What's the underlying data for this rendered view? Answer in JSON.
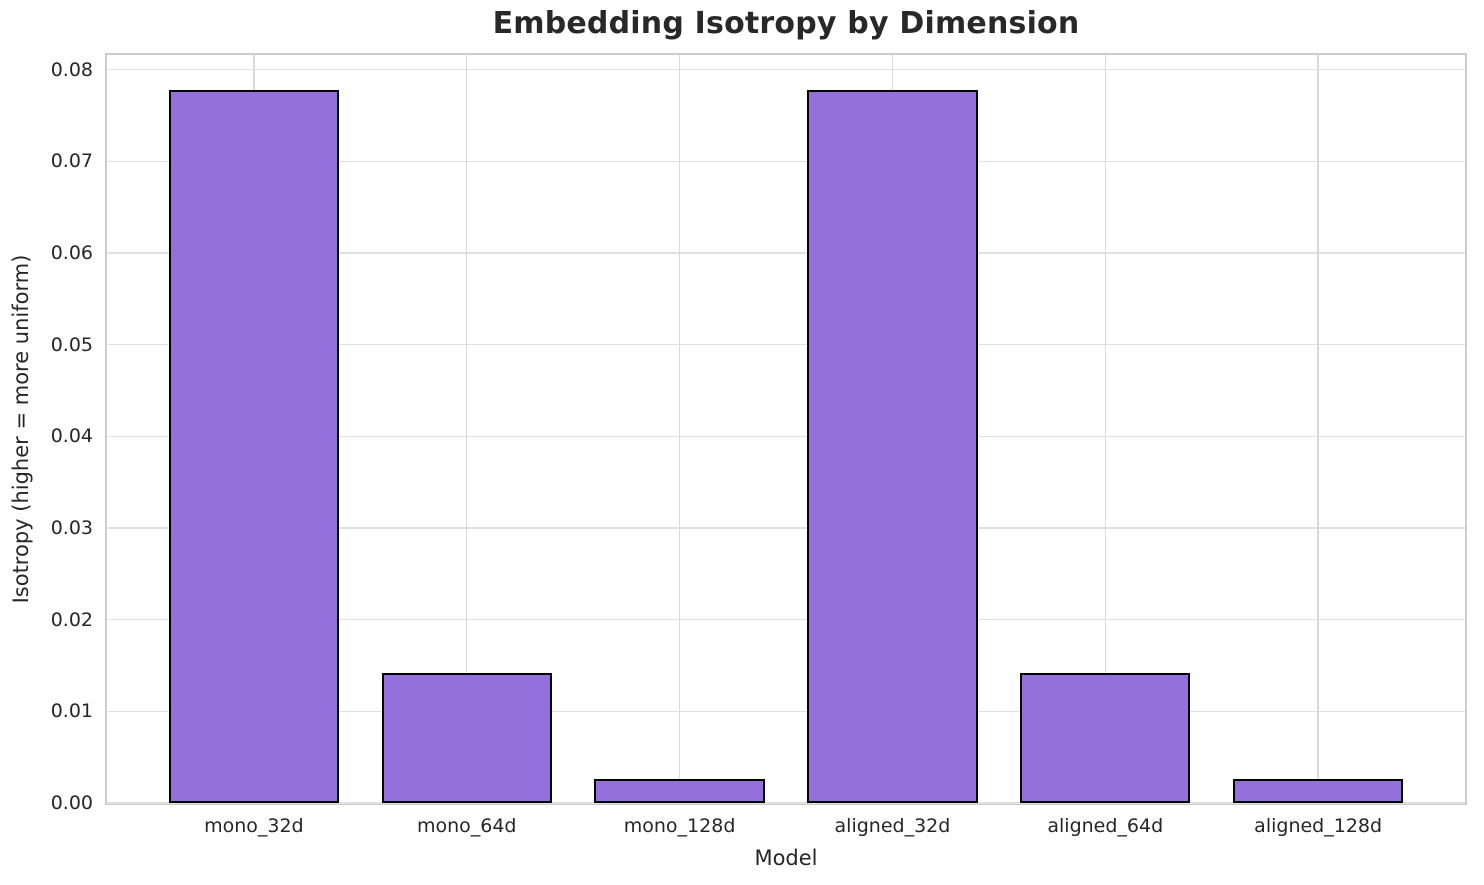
{
  "chart_data": {
    "type": "bar",
    "title": "Embedding Isotropy by Dimension",
    "xlabel": "Model",
    "ylabel": "Isotropy (higher = more uniform)",
    "categories": [
      "mono_32d",
      "mono_64d",
      "mono_128d",
      "aligned_32d",
      "aligned_64d",
      "aligned_128d"
    ],
    "values": [
      0.0778,
      0.0142,
      0.0026,
      0.0778,
      0.0142,
      0.0026
    ],
    "ylim": [
      0,
      0.0816
    ],
    "ytick_labels": [
      "0.00",
      "0.01",
      "0.02",
      "0.03",
      "0.04",
      "0.05",
      "0.06",
      "0.07",
      "0.08"
    ],
    "grid": "on",
    "legend_position": "none",
    "bar_width_frac": 0.8,
    "x_margin": 0.69,
    "colors": {
      "bar_fill": "#9370DB",
      "bar_edge": "#000000",
      "grid_h": "#e0e0e0",
      "grid_v": "#d9d9d9",
      "spine": "#cccccc",
      "text": "#262626",
      "title_text": "#282828",
      "background": "#ffffff"
    }
  }
}
